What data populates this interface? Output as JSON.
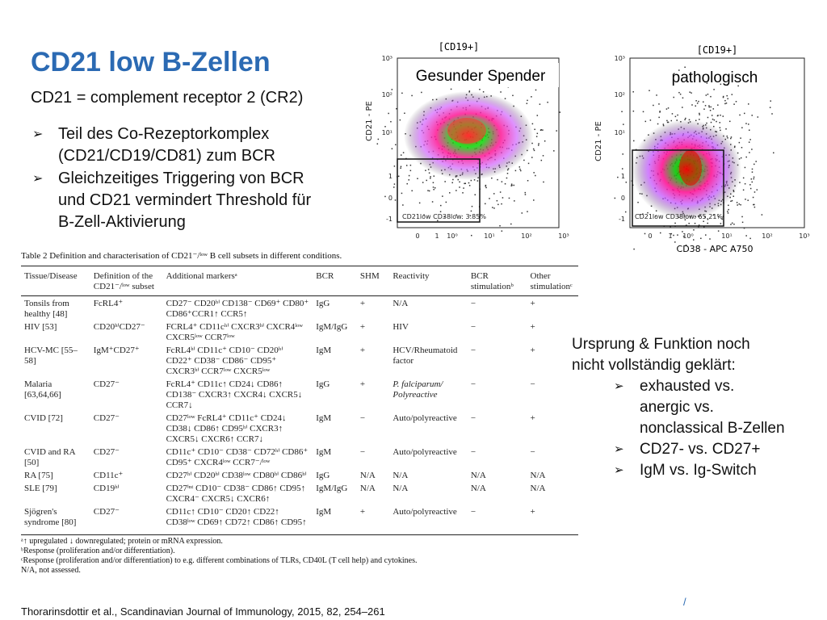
{
  "slide": {
    "title": "CD21 low B-Zellen",
    "subtitle": "CD21 = complement receptor 2 (CR2)",
    "bullets": [
      {
        "line1": "Teil des Co-Rezeptorkomplex",
        "line2": "(CD21/CD19/CD81) zum BCR"
      },
      {
        "line1": "Gleichzeitiges Triggering von BCR",
        "line2": "und CD21 vermindert Threshold für",
        "line3": "B-Zell-Aktivierung"
      }
    ]
  },
  "plots": {
    "left": {
      "header": "[CD19+]",
      "label": "Gesunder Spender",
      "ylabel": "CD21 - PE",
      "gate_text": "CD21low CD38low: 3.85%"
    },
    "right": {
      "header": "[CD19+]",
      "label": "pathologisch",
      "ylabel": "CD21 - PE",
      "xlabel": "CD38 - APC A750",
      "gate_text": "CD21low CD38low: 65.21%"
    },
    "yticks": [
      "10³",
      "10²",
      "10¹",
      "1",
      "0",
      "-1"
    ],
    "xticks": [
      "0",
      "1",
      "10⁰",
      "10¹",
      "10²",
      "10³"
    ]
  },
  "table": {
    "caption": "Table 2  Definition and characterisation of CD21⁻/ˡᵒʷ B cell subsets in different conditions.",
    "headers": {
      "tissue": "Tissue/Disease",
      "definition": "Definition of the CD21⁻/ˡᵒʷ subset",
      "markers": "Additional markersᵃ",
      "bcr": "BCR",
      "shm": "SHM",
      "reactivity": "Reactivity",
      "bcr_stim": "BCR stimulationᵇ",
      "other_stim": "Other stimulationᶜ"
    },
    "rows": [
      {
        "tissue": "Tonsils from healthy [48]",
        "definition": "FcRL4⁺",
        "markers": "CD27⁻ CD20ʰⁱ CD138⁻ CD69⁺ CD80⁺ CD86⁺CCR1↑ CCR5↑",
        "bcr": "IgG",
        "shm": "+",
        "reactivity": "N/A",
        "bcr_stim": "−",
        "other_stim": "+"
      },
      {
        "tissue": "HIV [53]",
        "definition": "CD20ʰⁱCD27⁻",
        "markers": "FCRL4⁺ CD11cʰⁱ CXCR3ʰⁱ CXCR4ˡᵒʷ CXCR5ˡᵒʷ CCR7ˡᵒʷ",
        "bcr": "IgM/IgG",
        "shm": "+",
        "reactivity": "HIV",
        "bcr_stim": "−",
        "other_stim": "+"
      },
      {
        "tissue": "HCV-MC [55–58]",
        "definition": "IgM⁺CD27⁺",
        "markers": "FcRL4ʰⁱ CD11c⁺ CD10⁻ CD20ʰⁱ CD22⁺ CD38⁻ CD86⁻ CD95⁺ CXCR3ʰⁱ CCR7ˡᵒʷ CXCR5ˡᵒʷ",
        "bcr": "IgM",
        "shm": "+",
        "reactivity": "HCV/Rheumatoid factor",
        "bcr_stim": "−",
        "other_stim": "+"
      },
      {
        "tissue": "Malaria [63,64,66]",
        "definition": "CD27⁻",
        "markers": "FcRL4⁺ CD11c↑ CD24↓ CD86↑ CD138⁻ CXCR3↑ CXCR4↓ CXCR5↓ CCR7↓",
        "bcr": "IgG",
        "shm": "+",
        "reactivity": "P. falciparum/ Polyreactive",
        "bcr_stim": "−",
        "other_stim": "−"
      },
      {
        "tissue": "CVID [72]",
        "definition": "CD27⁻",
        "markers": "CD27ˡᵒʷ FcRL4⁺ CD11c⁺ CD24↓ CD38↓ CD86↑ CD95ʰⁱ CXCR3↑ CXCR5↓ CXCR6↑ CCR7↓",
        "bcr": "IgM",
        "shm": "−",
        "reactivity": "Auto/polyreactive",
        "bcr_stim": "−",
        "other_stim": "+"
      },
      {
        "tissue": "CVID and RA [50]",
        "definition": "CD27⁻",
        "markers": "CD11c⁺ CD10⁻ CD38⁻ CD72ʰⁱ CD86⁺ CD95⁺ CXCR4ˡᵒʷ CCR7⁻/ˡᵒʷ",
        "bcr": "IgM",
        "shm": "−",
        "reactivity": "Auto/polyreactive",
        "bcr_stim": "−",
        "other_stim": "−"
      },
      {
        "tissue": "RA [75]",
        "definition": "CD11c⁺",
        "markers": "CD27ʰⁱ CD20ʰⁱ CD38ˡᵒʷ CD80ʰⁱ CD86ʰⁱ",
        "bcr": "IgG",
        "shm": "N/A",
        "reactivity": "N/A",
        "bcr_stim": "N/A",
        "other_stim": "N/A"
      },
      {
        "tissue": "SLE [79]",
        "definition": "CD19ʰⁱ",
        "markers": "CD27ⁱⁿᵗ CD10⁻ CD38⁻ CD86↑ CD95↑ CXCR4⁻ CXCR5↓ CXCR6↑",
        "bcr": "IgM/IgG",
        "shm": "N/A",
        "reactivity": "N/A",
        "bcr_stim": "N/A",
        "other_stim": "N/A"
      },
      {
        "tissue": "Sjögren's syndrome [80]",
        "definition": "CD27⁻",
        "markers": "CD11c↑ CD10⁻ CD20↑ CD22↑ CD38ˡᵒʷ CD69↑ CD72↑ CD86↑ CD95↑",
        "bcr": "IgM",
        "shm": "+",
        "reactivity": "Auto/polyreactive",
        "bcr_stim": "−",
        "other_stim": "+"
      }
    ],
    "footnotes": [
      "ᵃ↑ upregulated ↓ downregulated; protein or mRNA expression.",
      "ᵇResponse (proliferation and/or differentiation).",
      "ᶜResponse (proliferation and/or differentiation) to e.g. different combinations of TLRs, CD40L (T cell help) and cytokines.",
      "N/A, not assessed."
    ]
  },
  "side": {
    "intro1": "Ursprung & Funktion noch",
    "intro2": "nicht vollständig geklärt:",
    "items": [
      {
        "line1": "exhausted vs.",
        "line2": "anergic vs.",
        "line3": "nonclassical B-Zellen"
      },
      {
        "line1": " CD27- vs. CD27+"
      },
      {
        "line1": " IgM vs. Ig-Switch"
      }
    ]
  },
  "reference": "Thorarinsdottir et al., Scandinavian Journal of Immunology, 2015, 82, 254–261",
  "page_mark": "/",
  "colors": {
    "title": "#2b6ab3",
    "density_core": "#ff1493",
    "density_mid": "#0f0",
    "density_high": "#f00"
  }
}
